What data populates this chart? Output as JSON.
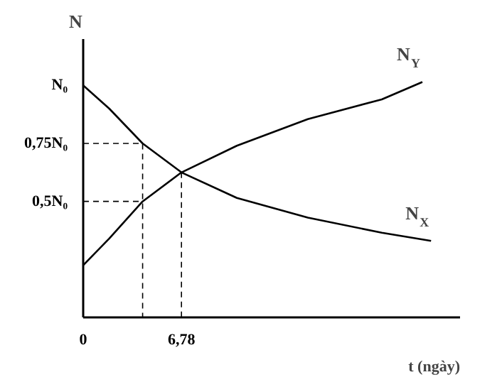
{
  "chart_data": {
    "type": "line",
    "xlabel": "t (ngày)",
    "ylabel": "N",
    "xlim": [
      0,
      26
    ],
    "ylim": [
      0,
      1.2
    ],
    "xticks": [
      0,
      {
        "value": 6.78,
        "label": "6,78"
      }
    ],
    "yticks": [
      {
        "value": 0.5,
        "label": "0,5N₀"
      },
      {
        "value": 0.75,
        "label": "0,75N₀"
      },
      {
        "value": 1,
        "label": "N₀"
      }
    ],
    "grid": false,
    "marker": "none",
    "series": [
      {
        "color": "#000000",
        "x": [
          0,
          1.8,
          4.1,
          6.78,
          10.6,
          15.5,
          20.6,
          24
        ],
        "values": [
          1.0,
          0.9,
          0.75,
          0.625,
          0.515,
          0.43,
          0.365,
          0.33
        ]
      },
      {
        "color": "#000000",
        "x": [
          0,
          1.8,
          4.1,
          6.78,
          10.6,
          15.5,
          20.6,
          23.4
        ],
        "values": [
          0.225,
          0.34,
          0.5,
          0.625,
          0.74,
          0.855,
          0.94,
          1.015
        ]
      },
      {
        "color": "#000000",
        "line_style": "dashed",
        "x": [
          0,
          4.1,
          4.1
        ],
        "values": [
          0.75,
          0.75,
          0
        ]
      },
      {
        "color": "#000000",
        "line_style": "dashed",
        "x": [
          0,
          4.1
        ],
        "values": [
          0.5,
          0.5
        ]
      },
      {
        "color": "#000000",
        "line_style": "dashed",
        "x": [
          6.78,
          6.78
        ],
        "values": [
          0.625,
          0
        ]
      }
    ],
    "annotations": [
      {
        "text": "N$_{Y}$",
        "x": 23.4,
        "y": 1.015
      },
      {
        "text": "N$_{X}$",
        "x": 24,
        "y": 0.33
      }
    ]
  }
}
